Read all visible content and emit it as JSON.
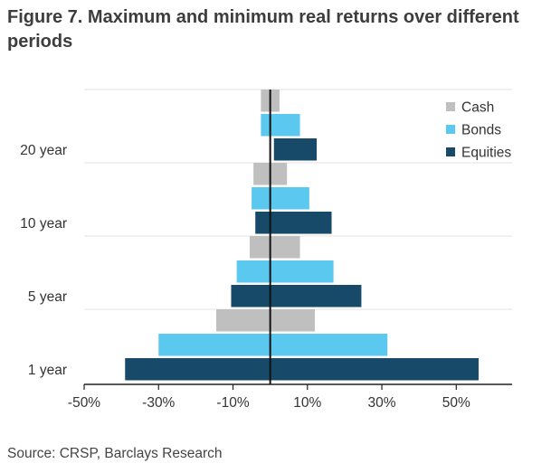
{
  "title": "Figure 7. Maximum and minimum real returns over different periods",
  "source": "Source: CRSP, Barclays Research",
  "chart_data": {
    "type": "bar",
    "orientation": "horizontal",
    "layout": "min-max range bars",
    "categories": [
      "20 year",
      "10 year",
      "5 year",
      "1 year"
    ],
    "series": [
      {
        "name": "Cash",
        "color": "#bfbfbf",
        "min": [
          -2.5,
          -4.5,
          -5.5,
          -14.5
        ],
        "max": [
          2.5,
          4.5,
          8,
          12
        ]
      },
      {
        "name": "Bonds",
        "color": "#5bc8f0",
        "min": [
          -2.5,
          -5,
          -9,
          -30
        ],
        "max": [
          8,
          10.5,
          17,
          31.5
        ]
      },
      {
        "name": "Equities",
        "color": "#174a68",
        "min": [
          1,
          -4,
          -10.5,
          -39
        ],
        "max": [
          12.5,
          16.5,
          24.5,
          56
        ]
      }
    ],
    "xlim": [
      -50,
      65
    ],
    "xticks": [
      -50,
      -30,
      -10,
      10,
      30,
      50
    ],
    "xtick_labels": [
      "-50%",
      "-30%",
      "-10%",
      "10%",
      "30%",
      "50%"
    ],
    "grid": "horizontal",
    "legend": "top-right"
  }
}
